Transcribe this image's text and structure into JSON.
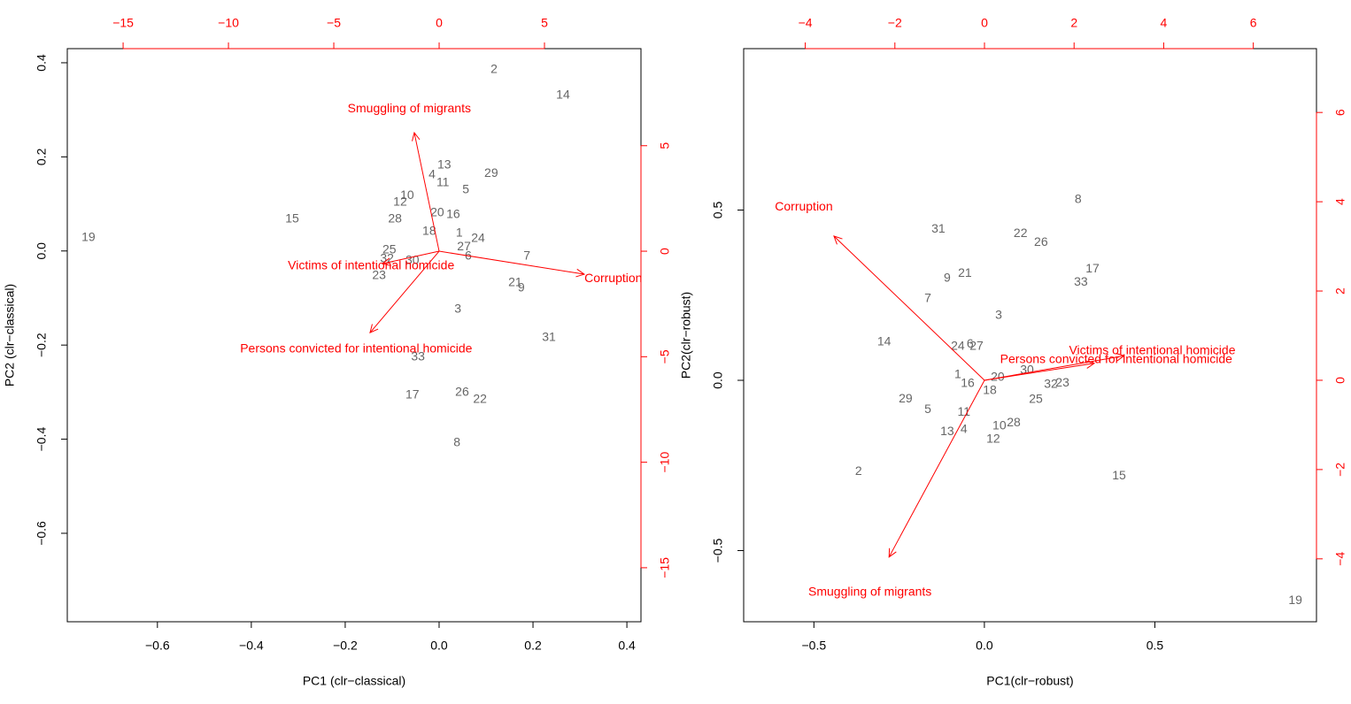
{
  "chart_data": [
    {
      "type": "biplot",
      "xlabel": "PC1 (clr−classical)",
      "ylabel": "PC2 (clr−classical)",
      "xlim": [
        -0.792,
        0.43
      ],
      "ylim": [
        -0.788,
        0.43
      ],
      "xticks": [
        {
          "value": -0.6,
          "label": "−0.6"
        },
        {
          "value": -0.4,
          "label": "−0.4"
        },
        {
          "value": -0.2,
          "label": "−0.2"
        },
        {
          "value": 0,
          "label": "0.0"
        },
        0.2,
        0.4
      ],
      "yticks": [
        {
          "value": -0.6,
          "label": "−0.6"
        },
        {
          "value": -0.4,
          "label": "−0.4"
        },
        {
          "value": -0.2,
          "label": "−0.2"
        },
        {
          "value": 0,
          "label": "0.0"
        },
        0.2,
        0.4
      ],
      "x2lim": [
        -17.65,
        9.58
      ],
      "y2lim": [
        -17.56,
        9.6
      ],
      "x2ticks": [
        {
          "value": -15,
          "label": "−15"
        },
        {
          "value": -10,
          "label": "−10"
        },
        {
          "value": -5,
          "label": "−5"
        },
        0,
        5
      ],
      "y2ticks": [
        {
          "value": -15,
          "label": "−15"
        },
        {
          "value": -10,
          "label": "−10"
        },
        {
          "value": -5,
          "label": "−5"
        },
        0,
        5
      ],
      "point_labels": [
        "2",
        "14",
        "13",
        "4",
        "11",
        "29",
        "5",
        "10",
        "12",
        "20",
        "16",
        "28",
        "15",
        "19",
        "18",
        "1",
        "24",
        "27",
        "6",
        "25",
        "32",
        "30",
        "23",
        "7",
        "21",
        "9",
        "3",
        "31",
        "33",
        "17",
        "26",
        "22",
        "8"
      ],
      "x": [
        0.117,
        0.264,
        0.011,
        -0.015,
        0.008,
        0.111,
        0.057,
        -0.068,
        -0.083,
        -0.004,
        0.03,
        -0.094,
        -0.313,
        -0.747,
        -0.021,
        0.043,
        0.083,
        0.053,
        0.062,
        -0.106,
        -0.111,
        -0.057,
        -0.128,
        0.187,
        0.162,
        0.175,
        0.04,
        0.234,
        -0.045,
        -0.057,
        0.049,
        0.087,
        0.038
      ],
      "y": [
        0.385,
        0.331,
        0.182,
        0.162,
        0.145,
        0.164,
        0.13,
        0.117,
        0.103,
        0.081,
        0.077,
        0.068,
        0.068,
        0.028,
        0.041,
        0.038,
        0.026,
        0.008,
        -0.011,
        0.002,
        -0.017,
        -0.021,
        -0.053,
        -0.011,
        -0.068,
        -0.079,
        -0.124,
        -0.184,
        -0.226,
        -0.306,
        -0.301,
        -0.316,
        -0.408
      ],
      "loadings": {
        "names": [
          "Smuggling of migrants",
          "Corruption",
          "Victims of intentional homicide",
          "Persons convicted for intentional homicide"
        ],
        "x": [
          -1.18,
          6.89,
          -2.69,
          -3.28
        ],
        "y": [
          5.62,
          -1.09,
          -0.59,
          -3.86
        ]
      },
      "point_color": "#666666",
      "arrow_color": "#ff0000"
    },
    {
      "type": "biplot",
      "xlabel": "PC1(clr−robust)",
      "ylabel": "PC2(clr−robust)",
      "xlim": [
        -0.706,
        0.974
      ],
      "ylim": [
        -0.709,
        0.974
      ],
      "xticks": [
        {
          "value": -0.5,
          "label": "−0.5"
        },
        {
          "value": 0,
          "label": "0.0"
        },
        0.5
      ],
      "yticks": [
        {
          "value": -0.5,
          "label": "−0.5"
        },
        {
          "value": 0,
          "label": "0.0"
        },
        0.5
      ],
      "x2lim": [
        -5.375,
        7.41
      ],
      "y2lim": [
        -5.41,
        7.43
      ],
      "x2ticks": [
        {
          "value": -4,
          "label": "−4"
        },
        {
          "value": -2,
          "label": "−2"
        },
        0,
        2,
        4,
        6
      ],
      "y2ticks": [
        {
          "value": -4,
          "label": "−4"
        },
        {
          "value": -2,
          "label": "−2"
        },
        0,
        2,
        4,
        6
      ],
      "point_labels": [
        "8",
        "31",
        "22",
        "26",
        "17",
        "33",
        "9",
        "21",
        "7",
        "3",
        "14",
        "24",
        "6",
        "27",
        "30",
        "20",
        "1",
        "16",
        "18",
        "32",
        "23",
        "29",
        "25",
        "5",
        "11",
        "10",
        "28",
        "13",
        "4",
        "12",
        "2",
        "15",
        "19"
      ],
      "x": [
        0.275,
        -0.135,
        0.106,
        0.166,
        0.317,
        0.283,
        -0.109,
        -0.057,
        -0.166,
        0.042,
        -0.294,
        -0.078,
        -0.042,
        -0.023,
        0.125,
        0.039,
        -0.078,
        -0.049,
        0.016,
        0.195,
        0.229,
        -0.231,
        0.151,
        -0.166,
        -0.06,
        0.044,
        0.086,
        -0.109,
        -0.06,
        0.026,
        -0.369,
        0.395,
        0.912
      ],
      "y": [
        0.53,
        0.444,
        0.431,
        0.405,
        0.327,
        0.288,
        0.299,
        0.314,
        0.239,
        0.19,
        0.112,
        0.099,
        0.106,
        0.099,
        0.029,
        0.008,
        0.016,
        -0.01,
        -0.031,
        -0.013,
        -0.008,
        -0.055,
        -0.057,
        -0.086,
        -0.094,
        -0.135,
        -0.125,
        -0.151,
        -0.145,
        -0.174,
        -0.268,
        -0.281,
        -0.647
      ],
      "loadings": {
        "names": [
          "Corruption",
          "Smuggling of migrants",
          "Victims of intentional homicide",
          "Persons convicted for intentional homicide"
        ],
        "x": [
          -3.36,
          -2.13,
          3.12,
          2.45
        ],
        "y": [
          3.23,
          -3.96,
          0.55,
          0.38
        ]
      },
      "point_color": "#666666",
      "arrow_color": "#ff0000"
    }
  ]
}
